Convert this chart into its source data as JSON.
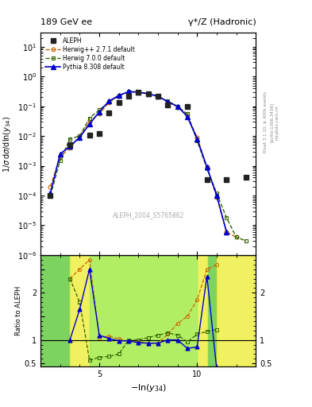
{
  "title_left": "189 GeV ee",
  "title_right": "γ*/Z (Hadronic)",
  "ylabel_main": "1/σ dσ/dln(y_{34})",
  "ylabel_ratio": "Ratio to ALEPH",
  "xlabel": "-ln(y_{34})",
  "watermark": "ALEPH_2004_S5765862",
  "rivet_label": "Rivet 3.1.10, ≥ 400k events",
  "arxiv_label": "[arXiv:1306.3436]",
  "mcplots_label": "mcplots.cern.ch",
  "aleph_x": [
    2.5,
    3.5,
    4.5,
    5.0,
    5.5,
    6.0,
    6.5,
    7.0,
    7.5,
    8.0,
    8.5,
    9.5,
    10.5,
    11.5,
    12.5
  ],
  "aleph_y": [
    0.0001,
    0.005,
    0.011,
    0.012,
    0.06,
    0.13,
    0.22,
    0.3,
    0.27,
    0.22,
    0.11,
    0.1,
    0.00035,
    0.00035,
    0.0004
  ],
  "herwig_x": [
    2.5,
    3.0,
    3.5,
    4.0,
    4.5,
    5.0,
    5.5,
    6.0,
    6.5,
    7.0,
    7.5,
    8.0,
    8.5,
    9.0,
    9.5,
    10.0,
    10.5,
    11.0,
    11.5,
    12.0
  ],
  "herwig_y": [
    0.0002,
    0.002,
    0.004,
    0.01,
    0.03,
    0.055,
    0.135,
    0.225,
    0.305,
    0.295,
    0.265,
    0.215,
    0.14,
    0.095,
    0.05,
    0.009,
    0.0009,
    9e-05,
    6e-06,
    4e-06
  ],
  "herwig7_x": [
    2.5,
    3.0,
    3.5,
    4.0,
    4.5,
    5.0,
    5.5,
    6.0,
    6.5,
    7.0,
    7.5,
    8.0,
    8.5,
    9.0,
    9.5,
    10.0,
    10.5,
    11.0,
    11.5,
    12.0,
    12.5
  ],
  "herwig7_y": [
    0.0001,
    0.0015,
    0.008,
    0.01,
    0.04,
    0.075,
    0.14,
    0.23,
    0.31,
    0.3,
    0.265,
    0.21,
    0.15,
    0.1,
    0.055,
    0.007,
    0.0008,
    0.00012,
    1.8e-05,
    4e-06,
    3e-06
  ],
  "pythia_x": [
    2.5,
    3.0,
    3.5,
    4.0,
    4.5,
    5.0,
    5.5,
    6.0,
    6.5,
    7.0,
    7.5,
    8.0,
    8.5,
    9.0,
    9.5,
    10.0,
    10.5,
    11.0,
    11.5
  ],
  "pythia_y": [
    0.00012,
    0.0025,
    0.0045,
    0.009,
    0.025,
    0.065,
    0.15,
    0.23,
    0.31,
    0.3,
    0.26,
    0.22,
    0.14,
    0.1,
    0.045,
    0.008,
    0.0009,
    0.0001,
    6e-06
  ],
  "ratio_herwig_x": [
    3.5,
    4.0,
    4.5,
    5.0,
    5.5,
    6.0,
    6.5,
    7.0,
    7.5,
    8.0,
    8.5,
    9.0,
    9.5,
    10.0,
    10.5,
    11.0
  ],
  "ratio_herwig_y": [
    2.3,
    2.5,
    2.7,
    1.05,
    1.08,
    1.02,
    0.97,
    0.96,
    0.93,
    0.93,
    1.12,
    1.35,
    1.5,
    1.85,
    2.5,
    2.6
  ],
  "ratio_herwig7_x": [
    3.5,
    4.0,
    4.5,
    5.0,
    5.5,
    6.0,
    6.5,
    7.0,
    7.5,
    8.0,
    8.5,
    9.0,
    9.5,
    10.0,
    10.5,
    11.0
  ],
  "ratio_herwig7_y": [
    2.3,
    1.8,
    0.57,
    0.63,
    0.65,
    0.7,
    1.0,
    1.0,
    1.05,
    1.1,
    1.15,
    1.1,
    0.96,
    1.12,
    1.18,
    1.22
  ],
  "ratio_pythia_x": [
    3.5,
    4.0,
    4.5,
    5.0,
    5.5,
    6.0,
    6.5,
    7.0,
    7.5,
    8.0,
    8.5,
    9.0,
    9.5,
    10.0,
    10.5,
    11.0
  ],
  "ratio_pythia_y": [
    1.0,
    1.65,
    2.5,
    1.1,
    1.03,
    0.98,
    0.98,
    0.94,
    0.93,
    0.93,
    1.0,
    1.0,
    0.82,
    0.85,
    2.35,
    0.38
  ],
  "color_aleph": "#222222",
  "color_herwig": "#cc6600",
  "color_herwig7": "#336600",
  "color_pythia": "#0000cc",
  "ylim_main": [
    1e-06,
    30.0
  ],
  "ylim_ratio": [
    0.44,
    2.8
  ],
  "xlim": [
    2.0,
    13.0
  ],
  "xticks": [
    5,
    10
  ]
}
